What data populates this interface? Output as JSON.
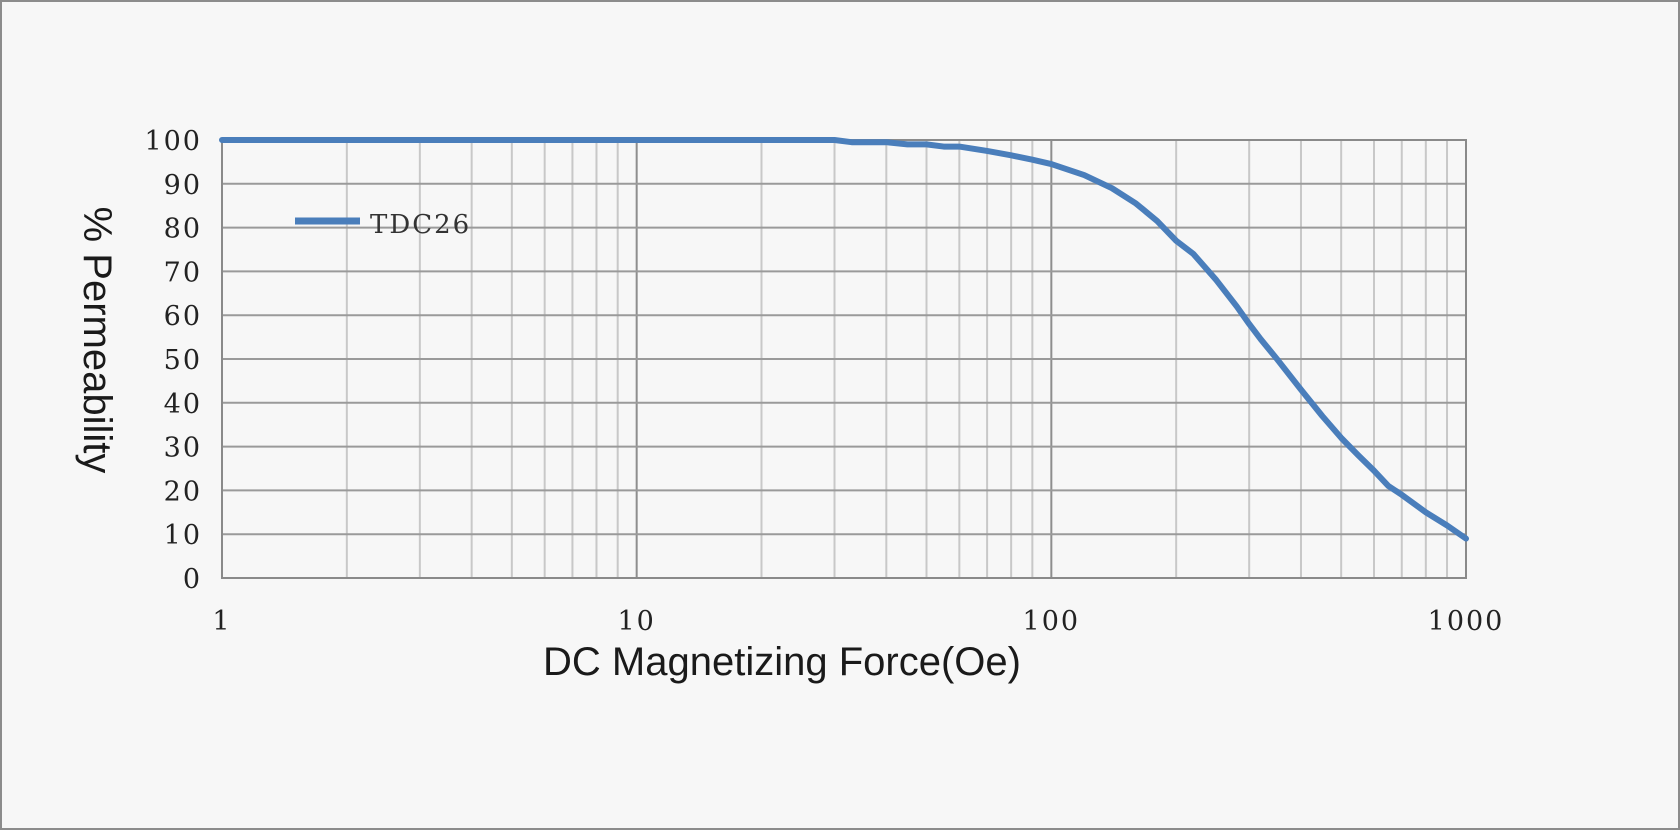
{
  "chart_data": {
    "type": "line",
    "title": "",
    "xlabel": "DC Magnetizing Force(Oe)",
    "ylabel": "% Permeability",
    "xscale": "log",
    "xlim": [
      1,
      1000
    ],
    "ylim": [
      0,
      100
    ],
    "x_ticks": [
      "1",
      "10",
      "100",
      "1000"
    ],
    "y_ticks": [
      "0",
      "10",
      "20",
      "30",
      "40",
      "50",
      "60",
      "70",
      "80",
      "90",
      "100"
    ],
    "grid": true,
    "legend_position": "top-left",
    "series": [
      {
        "name": "TDC26",
        "color": "#4a7ebb",
        "x": [
          1,
          2,
          5,
          10,
          20,
          30,
          33,
          40,
          45,
          50,
          55,
          60,
          70,
          80,
          90,
          100,
          120,
          140,
          160,
          180,
          200,
          220,
          250,
          280,
          300,
          320,
          350,
          400,
          450,
          500,
          550,
          600,
          650,
          700,
          800,
          900,
          1000
        ],
        "y": [
          100,
          100,
          100,
          100,
          100,
          100,
          99.5,
          99.5,
          99,
          99,
          98.5,
          98.5,
          97.5,
          96.5,
          95.5,
          94.5,
          92,
          89,
          85.5,
          81.5,
          77,
          74,
          68,
          62,
          58,
          54.5,
          50,
          43,
          37,
          32,
          28,
          24.5,
          21,
          19,
          15,
          12,
          9
        ]
      }
    ]
  }
}
